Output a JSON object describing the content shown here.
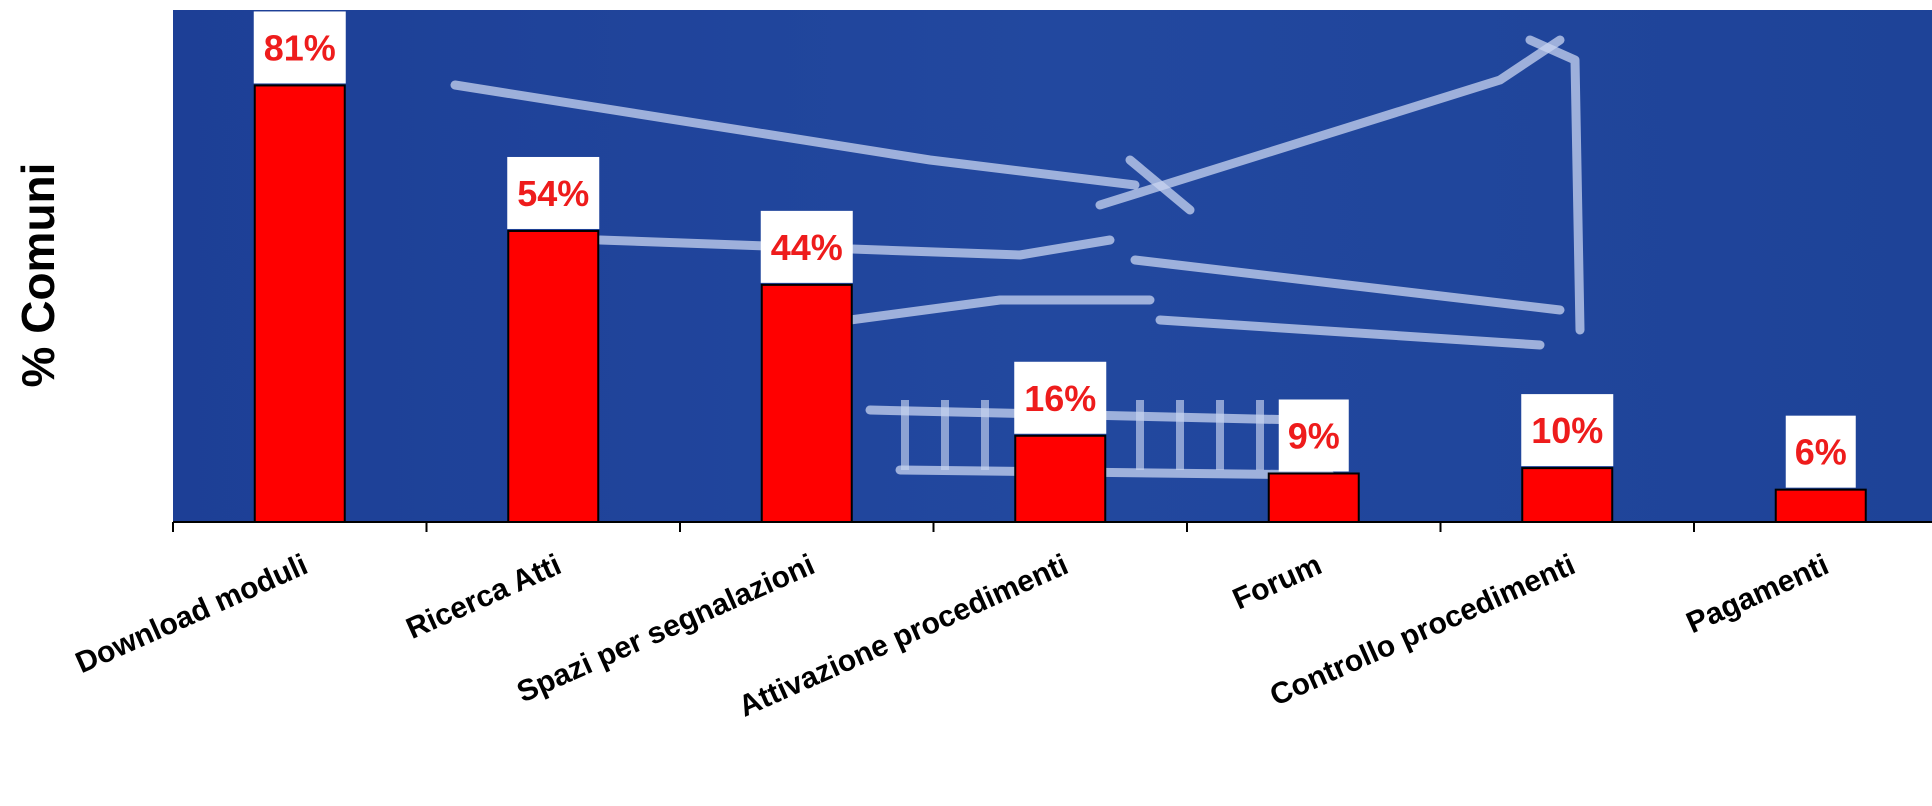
{
  "chart_data": {
    "type": "bar",
    "ylabel": "% Comuni",
    "xlabel": "",
    "title": "",
    "ylim": [
      0,
      95
    ],
    "grid": false,
    "legend": "none",
    "categories": [
      "Download moduli",
      "Ricerca Atti",
      "Spazi per segnalazioni",
      "Attivazione procedimenti",
      "Forum",
      "Controllo procedimenti",
      "Pagamenti"
    ],
    "values": [
      81,
      54,
      44,
      16,
      9,
      10,
      6
    ],
    "data_labels": [
      "81%",
      "54%",
      "44%",
      "16%",
      "9%",
      "10%",
      "6%"
    ],
    "colors": {
      "bar": "#ff0000",
      "bar_stroke": "#000000",
      "plot_background": "#1f4299",
      "background_motif": "#c8d4f0",
      "label_box": "#ffffff",
      "label_text": "#ee1c1c",
      "axis": "#000000"
    }
  }
}
